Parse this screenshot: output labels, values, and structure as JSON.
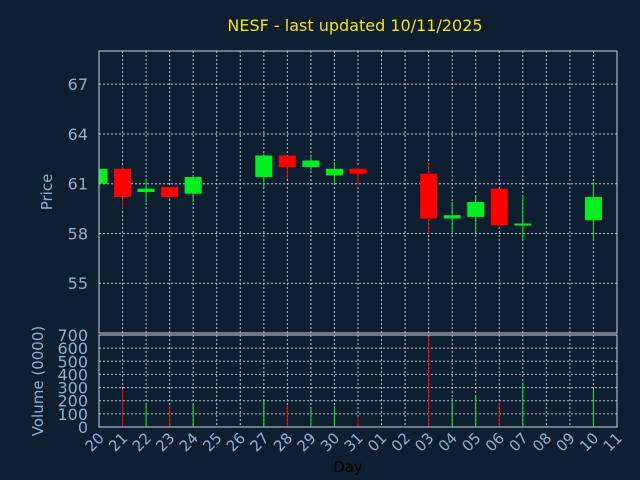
{
  "colors": {
    "background": "#0f1f32",
    "up": "#00ee22",
    "down": "#ff0000",
    "title": "#f2e21a",
    "text": "#8fb0cf"
  },
  "chart_data": {
    "type": "candlestick",
    "title": "NESF - last updated 10/11/2025",
    "xlabel": "Day",
    "price": {
      "ylabel": "Price",
      "ylim": [
        52,
        69
      ],
      "yticks": [
        55,
        58,
        61,
        64,
        67
      ]
    },
    "volume": {
      "ylabel": "Volume (0000)",
      "ylim": [
        0,
        700
      ],
      "yticks": [
        0,
        100,
        200,
        300,
        400,
        500,
        600,
        700
      ]
    },
    "grid": true,
    "x_labels": [
      "20",
      "21",
      "22",
      "23",
      "24",
      "25",
      "26",
      "27",
      "28",
      "29",
      "30",
      "31",
      "01",
      "02",
      "03",
      "04",
      "05",
      "06",
      "07",
      "08",
      "09",
      "10",
      "11"
    ],
    "candles": [
      {
        "x": "20",
        "open": 61.0,
        "high": 62.0,
        "low": 60.9,
        "close": 61.9,
        "volume": 90
      },
      {
        "x": "21",
        "open": 61.9,
        "high": 62.0,
        "low": 59.5,
        "close": 60.2,
        "volume": 290
      },
      {
        "x": "22",
        "open": 60.5,
        "high": 61.3,
        "low": 59.9,
        "close": 60.7,
        "volume": 170
      },
      {
        "x": "23",
        "open": 60.8,
        "high": 60.8,
        "low": 60.1,
        "close": 60.2,
        "volume": 160
      },
      {
        "x": "24",
        "open": 60.4,
        "high": 61.5,
        "low": 59.9,
        "close": 61.4,
        "volume": 170
      },
      {
        "x": "27",
        "open": 61.4,
        "high": 62.8,
        "low": 60.8,
        "close": 62.7,
        "volume": 200
      },
      {
        "x": "28",
        "open": 62.7,
        "high": 62.7,
        "low": 61.3,
        "close": 62.0,
        "volume": 160
      },
      {
        "x": "29",
        "open": 62.0,
        "high": 62.6,
        "low": 61.8,
        "close": 62.4,
        "volume": 150
      },
      {
        "x": "30",
        "open": 61.5,
        "high": 62.3,
        "low": 61.0,
        "close": 61.9,
        "volume": 160
      },
      {
        "x": "31",
        "open": 61.9,
        "high": 62.0,
        "low": 60.9,
        "close": 61.6,
        "volume": 80
      },
      {
        "x": "03",
        "open": 61.6,
        "high": 62.3,
        "low": 58.0,
        "close": 58.9,
        "volume": 690
      },
      {
        "x": "04",
        "open": 58.9,
        "high": 59.9,
        "low": 58.0,
        "close": 59.1,
        "volume": 220
      },
      {
        "x": "05",
        "open": 59.0,
        "high": 60.3,
        "low": 58.1,
        "close": 59.9,
        "volume": 240
      },
      {
        "x": "06",
        "open": 60.7,
        "high": 60.7,
        "low": 58.3,
        "close": 58.5,
        "volume": 180
      },
      {
        "x": "07",
        "open": 58.5,
        "high": 60.3,
        "low": 57.6,
        "close": 58.6,
        "volume": 340
      },
      {
        "x": "10",
        "open": 58.8,
        "high": 61.1,
        "low": 57.6,
        "close": 60.2,
        "volume": 290
      }
    ]
  }
}
